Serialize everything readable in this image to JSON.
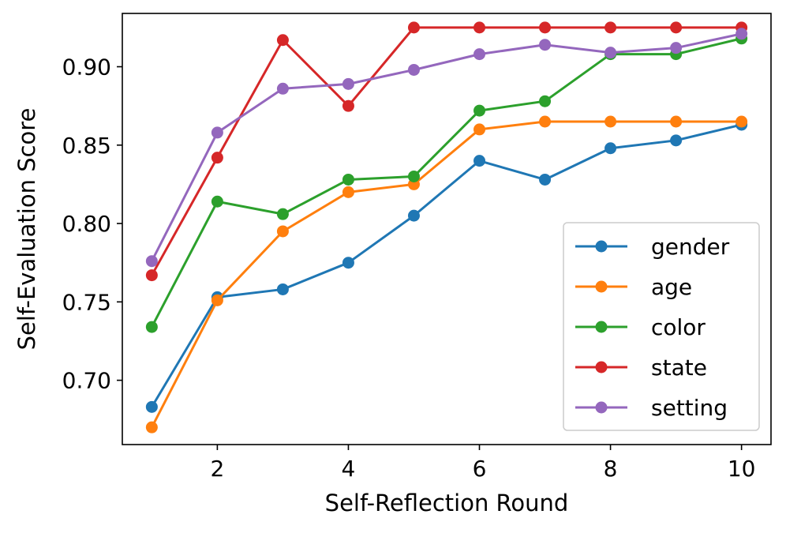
{
  "chart_data": {
    "type": "line",
    "title": "",
    "xlabel": "Self-Reflection Round",
    "ylabel": "Self-Evaluation Score",
    "x": [
      1,
      2,
      3,
      4,
      5,
      6,
      7,
      8,
      9,
      10
    ],
    "xlim": [
      0.55,
      10.45
    ],
    "ylim": [
      0.659,
      0.934
    ],
    "xticks": [
      2,
      4,
      6,
      8,
      10
    ],
    "xtick_labels": [
      "2",
      "4",
      "6",
      "8",
      "10"
    ],
    "yticks": [
      0.7,
      0.75,
      0.8,
      0.85,
      0.9
    ],
    "ytick_labels": [
      "0.70",
      "0.75",
      "0.80",
      "0.85",
      "0.90"
    ],
    "grid": false,
    "legend_position": "lower-right",
    "series": [
      {
        "name": "gender",
        "color": "#1f77b4",
        "values": [
          0.683,
          0.753,
          0.758,
          0.775,
          0.805,
          0.84,
          0.828,
          0.848,
          0.853,
          0.863
        ]
      },
      {
        "name": "age",
        "color": "#ff7f0e",
        "values": [
          0.67,
          0.751,
          0.795,
          0.82,
          0.825,
          0.86,
          0.865,
          0.865,
          0.865,
          0.865
        ]
      },
      {
        "name": "color",
        "color": "#2ca02c",
        "values": [
          0.734,
          0.814,
          0.806,
          0.828,
          0.83,
          0.872,
          0.878,
          0.908,
          0.908,
          0.918
        ]
      },
      {
        "name": "state",
        "color": "#d62728",
        "values": [
          0.767,
          0.842,
          0.917,
          0.875,
          0.925,
          0.925,
          0.925,
          0.925,
          0.925,
          0.925
        ]
      },
      {
        "name": "setting",
        "color": "#9467bd",
        "values": [
          0.776,
          0.858,
          0.886,
          0.889,
          0.898,
          0.908,
          0.914,
          0.909,
          0.912,
          0.921
        ]
      }
    ]
  }
}
